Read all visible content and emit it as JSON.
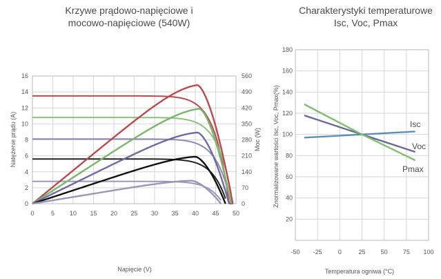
{
  "chart_data": [
    {
      "type": "line",
      "title": "Krzywe prądowo-napięciowe i mocowo-napięciowe (540W)",
      "title_lines": [
        "Krzywe prądowo-napięciowe i",
        "mocowo-napięciowe (540W)"
      ],
      "xlabel": "Napięcie (V)",
      "ylabel": "Natężenie prądu (A)",
      "y2label": "Moc (W)",
      "xlim": [
        0,
        50
      ],
      "ylim": [
        0,
        16
      ],
      "y2lim": [
        0,
        560
      ],
      "x_ticks": [
        "0",
        "5",
        "10",
        "15",
        "20",
        "25",
        "30",
        "35",
        "40",
        "45",
        "50"
      ],
      "y_ticks": [
        "0",
        "2",
        "4",
        "6",
        "8",
        "10",
        "12",
        "14",
        "16"
      ],
      "y2_ticks": [
        "0",
        "70",
        "140",
        "210",
        "280",
        "350",
        "420",
        "490",
        "560"
      ],
      "grid": true,
      "iv_series": [
        {
          "color": "#b84a4e",
          "isc": 13.5,
          "imp": 12.6,
          "vmp": 39.8,
          "voc": 49.2
        },
        {
          "color": "#8cc07e",
          "isc": 10.8,
          "imp": 10.1,
          "vmp": 40.5,
          "voc": 48.8
        },
        {
          "color": "#8d87b3",
          "isc": 8.1,
          "imp": 7.6,
          "vmp": 40.0,
          "voc": 48.3
        },
        {
          "color": "#222222",
          "isc": 5.6,
          "imp": 5.2,
          "vmp": 39.6,
          "voc": 47.4
        },
        {
          "color": "#9a96b8",
          "isc": 2.8,
          "imp": 2.6,
          "vmp": 38.8,
          "voc": 46.3
        }
      ],
      "pv_series": [
        {
          "color": "#b84a4e",
          "pmax": 520,
          "vmp": 40.5,
          "voc": 49.2
        },
        {
          "color": "#79b56b",
          "pmax": 416,
          "vmp": 41.0,
          "voc": 48.8
        },
        {
          "color": "#6f6aa1",
          "pmax": 312,
          "vmp": 40.5,
          "voc": 48.3
        },
        {
          "color": "#111111",
          "pmax": 206,
          "vmp": 40.0,
          "voc": 47.4
        },
        {
          "color": "#9a96b8",
          "pmax": 101,
          "vmp": 39.0,
          "voc": 46.3
        }
      ]
    },
    {
      "type": "line",
      "title": "Charakterystyki temperaturowe Isc, Voc, Pmax",
      "title_lines": [
        "Charakterystyki temperaturowe",
        "Isc, Voc, Pmax"
      ],
      "xlabel": "Temperatura ogniwa (°C)",
      "ylabel": "Znormalizowane wartości Isc, Voc, Pmax(%)",
      "xlim": [
        -50,
        100
      ],
      "ylim": [
        0,
        180
      ],
      "x_ticks": [
        "-50",
        "-25",
        "0",
        "25",
        "50",
        "75",
        "100"
      ],
      "y_ticks": [
        "20",
        "40",
        "60",
        "80",
        "100",
        "120",
        "140",
        "160",
        "180"
      ],
      "grid": true,
      "series": [
        {
          "name": "Isc",
          "color": "#5b8fb5",
          "x": [
            -40,
            25,
            85
          ],
          "y": [
            97.0,
            100,
            102.8
          ]
        },
        {
          "name": "Voc",
          "color": "#6a6a98",
          "x": [
            -40,
            25,
            85
          ],
          "y": [
            118.0,
            100,
            83.5
          ]
        },
        {
          "name": "Pmax",
          "color": "#7fbf72",
          "x": [
            -40,
            25,
            85
          ],
          "y": [
            128.5,
            100,
            75.5
          ]
        }
      ]
    }
  ]
}
